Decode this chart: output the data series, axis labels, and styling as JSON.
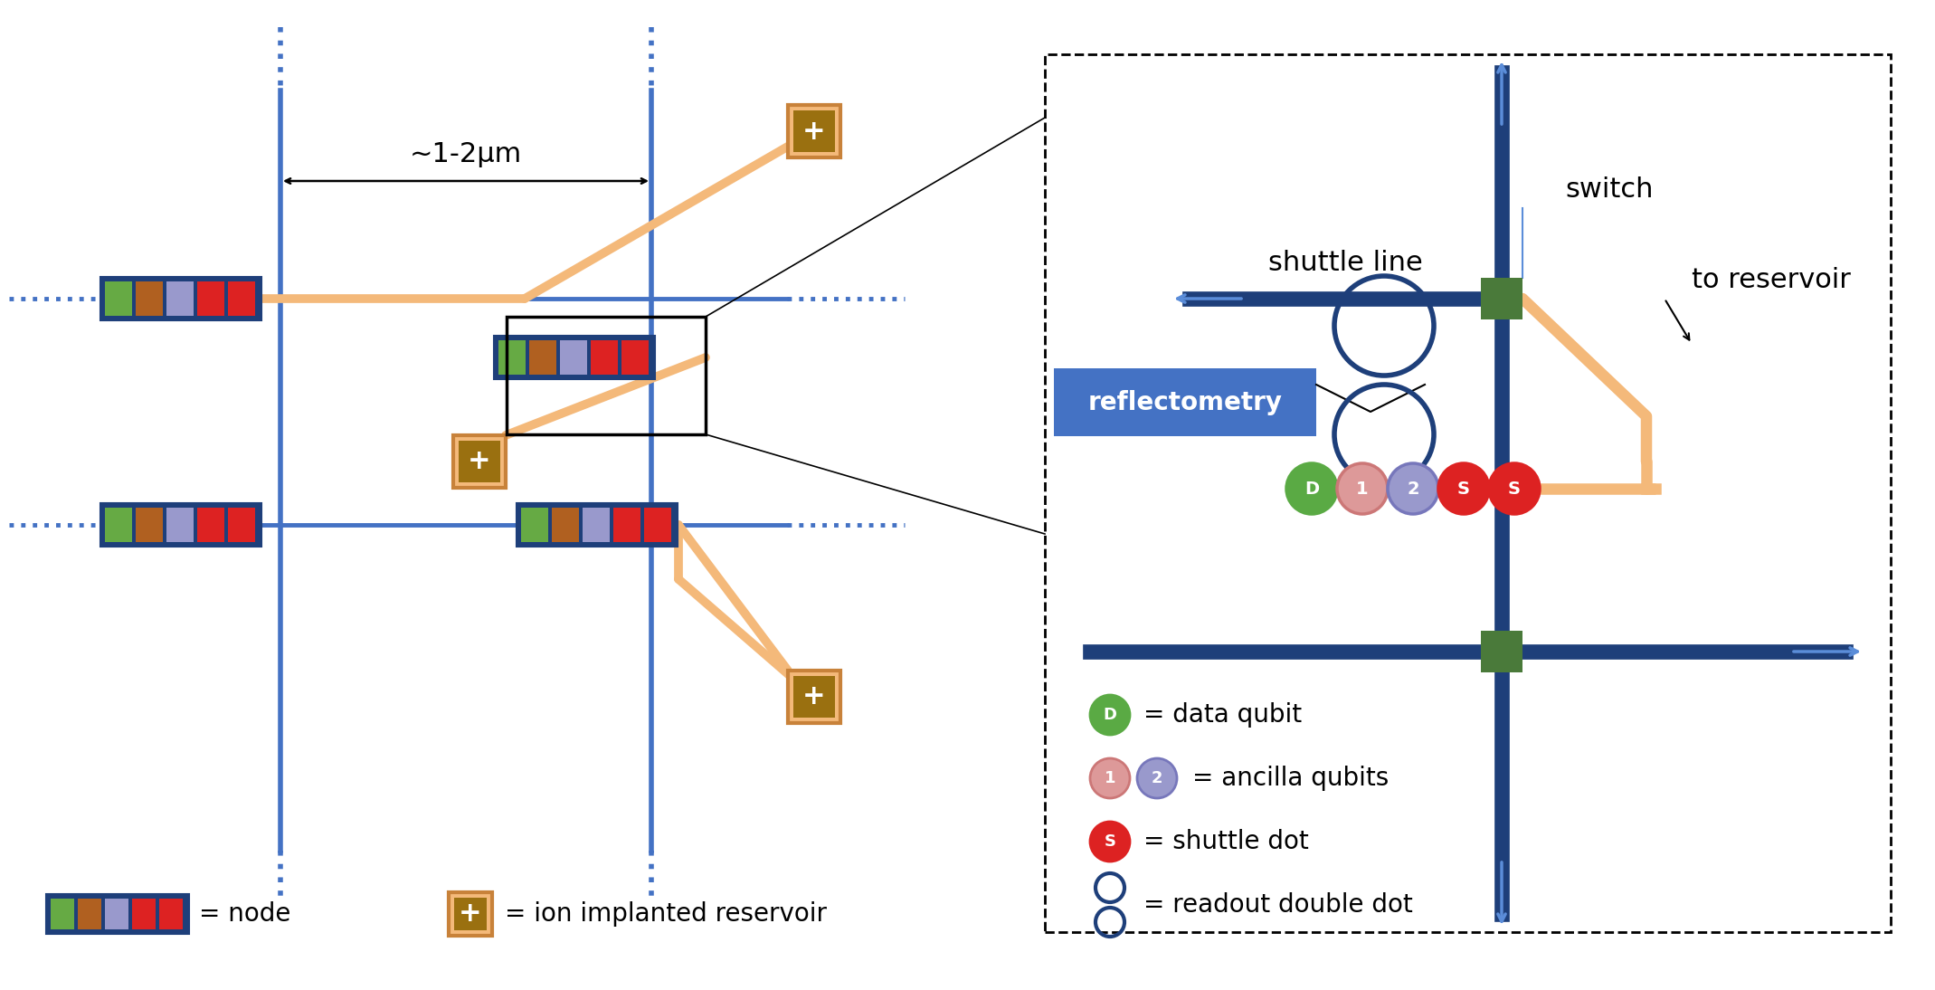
{
  "bg_color": "#ffffff",
  "dark_blue": "#1e3f7a",
  "medium_blue": "#4472c4",
  "light_blue": "#5b8dd9",
  "orange_line": "#f4b97a",
  "orange_border": "#c8823a",
  "gold_fill": "#9a7010",
  "green_switch": "#4a7a3a",
  "red_color": "#dd2222",
  "green_qubit": "#5aaa44",
  "brown_color": "#b06020",
  "lavender_color": "#8899cc",
  "pink_color": "#d08888",
  "node_colors": [
    "#66aa44",
    "#b06020",
    "#9999cc",
    "#dd2222",
    "#dd2222"
  ],
  "title_1_2um": "~1-2μm",
  "label_shuttle": "shuttle line",
  "label_switch": "switch",
  "label_reservoir": "to reservoir",
  "label_reflectometry": "reflectometry",
  "legend_node": "= node",
  "legend_reservoir": "= ion implanted reservoir",
  "legend_D": "= data qubit",
  "legend_12": "= ancilla qubits",
  "legend_S": "= shuttle dot",
  "legend_readout": "= readout double dot"
}
